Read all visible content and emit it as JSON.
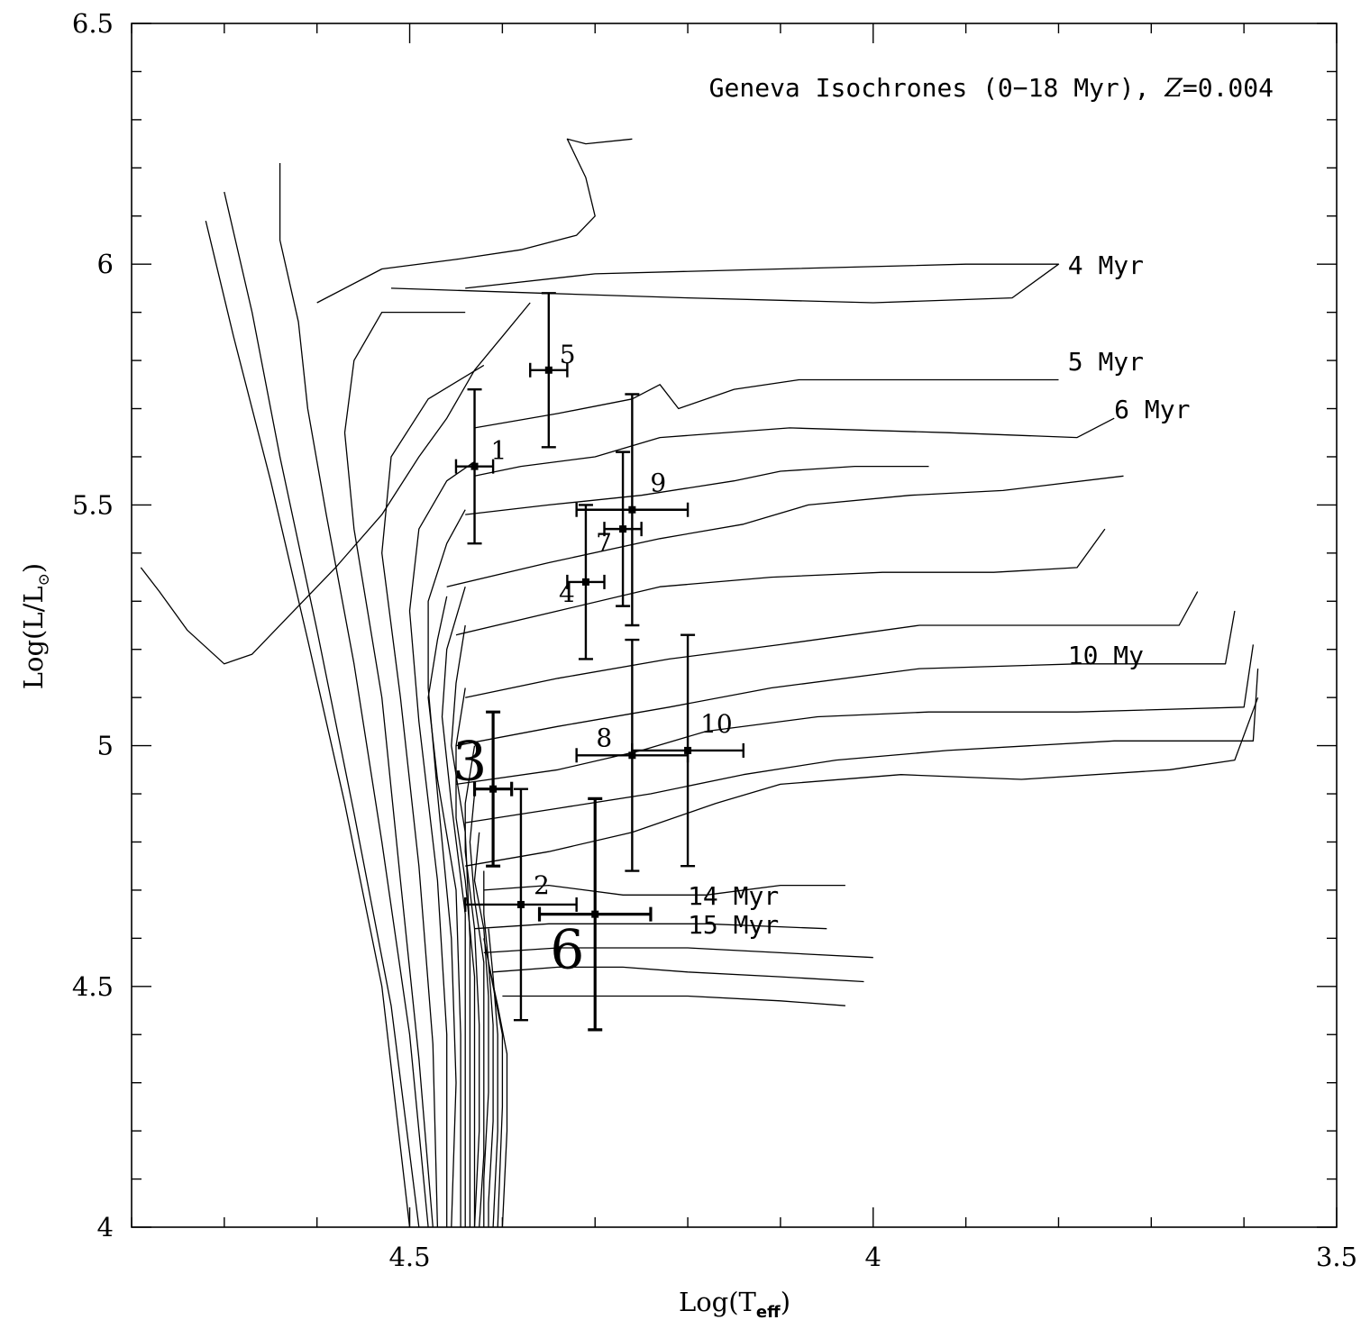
{
  "chart_data": {
    "type": "scatter",
    "title": "Geneva Isochrones (0−18 Myr), Z=0.004",
    "xlabel": "Log(T_eff)",
    "ylabel": "Log(L/L⊙)",
    "xlim": [
      4.8,
      3.5
    ],
    "ylim": [
      4.0,
      6.5
    ],
    "x_ticks": [
      "4.5",
      "4",
      "3.5"
    ],
    "y_ticks": [
      "4",
      "4.5",
      "5",
      "5.5",
      "6",
      "6.5"
    ],
    "isochrone_labels": [
      {
        "text": "4 Myr",
        "x": 3.79,
        "y": 5.98
      },
      {
        "text": "5 Myr",
        "x": 3.79,
        "y": 5.78
      },
      {
        "text": "6 Myr",
        "x": 3.74,
        "y": 5.68
      },
      {
        "text": "10 My",
        "x": 3.79,
        "y": 5.17
      },
      {
        "text": "14 Myr",
        "x": 4.2,
        "y": 4.67
      },
      {
        "text": "15 Myr",
        "x": 4.2,
        "y": 4.61
      }
    ],
    "stars": [
      {
        "label": "1",
        "x": 4.43,
        "y": 5.58,
        "xerr": 0.02,
        "yerr": 0.16,
        "big": false
      },
      {
        "label": "2",
        "x": 4.38,
        "y": 4.67,
        "xerr": 0.06,
        "yerr": 0.24,
        "big": false
      },
      {
        "label": "3",
        "x": 4.41,
        "y": 4.91,
        "xerr": 0.02,
        "yerr": 0.16,
        "big": true
      },
      {
        "label": "4",
        "x": 4.31,
        "y": 5.34,
        "xerr": 0.02,
        "yerr": 0.16,
        "big": false
      },
      {
        "label": "5",
        "x": 4.35,
        "y": 5.78,
        "xerr": 0.02,
        "yerr": 0.16,
        "big": false
      },
      {
        "label": "6",
        "x": 4.3,
        "y": 4.65,
        "xerr": 0.06,
        "yerr": 0.24,
        "big": true
      },
      {
        "label": "7",
        "x": 4.27,
        "y": 5.45,
        "xerr": 0.02,
        "yerr": 0.16,
        "big": false
      },
      {
        "label": "8",
        "x": 4.26,
        "y": 4.98,
        "xerr": 0.06,
        "yerr": 0.24,
        "big": false
      },
      {
        "label": "9",
        "x": 4.26,
        "y": 5.49,
        "xerr": 0.06,
        "yerr": 0.24,
        "big": false
      },
      {
        "label": "10",
        "x": 4.2,
        "y": 4.99,
        "xerr": 0.06,
        "yerr": 0.24,
        "big": false
      }
    ]
  }
}
